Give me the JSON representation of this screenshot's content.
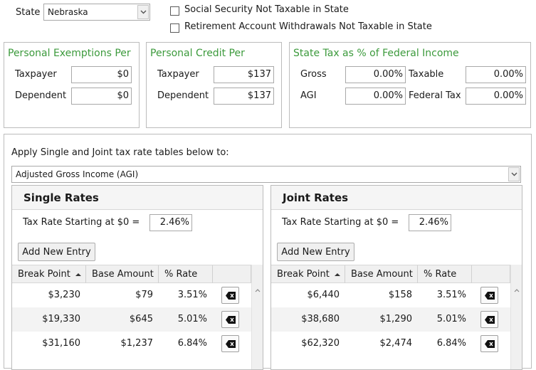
{
  "state": {
    "label": "State",
    "value": "Nebraska"
  },
  "checkboxes": [
    {
      "label": "Social Security Not Taxable in State",
      "checked": false
    },
    {
      "label": "Retirement Account Withdrawals Not Taxable in State",
      "checked": false
    }
  ],
  "exemptions": {
    "title": "Personal Exemptions Per",
    "taxpayer_label": "Taxpayer",
    "taxpayer_value": "$0",
    "dependent_label": "Dependent",
    "dependent_value": "$0"
  },
  "credit": {
    "title": "Personal Credit Per",
    "taxpayer_label": "Taxpayer",
    "taxpayer_value": "$137",
    "dependent_label": "Dependent",
    "dependent_value": "$137"
  },
  "state_tax": {
    "title": "State Tax as % of Federal Income",
    "gross_label": "Gross",
    "gross_value": "0.00%",
    "taxable_label": "Taxable",
    "taxable_value": "0.00%",
    "agi_label": "AGI",
    "agi_value": "0.00%",
    "fedtax_label": "Federal Tax",
    "fedtax_value": "0.00%"
  },
  "apply": {
    "label": "Apply Single and Joint tax rate tables below to:",
    "value": "Adjusted Gross Income (AGI)"
  },
  "single": {
    "title": "Single Rates",
    "start_label": "Tax Rate Starting at $0 =",
    "start_value": "2.46%",
    "add_label": "Add New Entry",
    "columns": [
      "Break Point",
      "Base Amount",
      "% Rate"
    ],
    "rows": [
      {
        "break": "$3,230",
        "base": "$79",
        "rate": "3.51%"
      },
      {
        "break": "$19,330",
        "base": "$645",
        "rate": "5.01%"
      },
      {
        "break": "$31,160",
        "base": "$1,237",
        "rate": "6.84%"
      }
    ]
  },
  "joint": {
    "title": "Joint Rates",
    "start_label": "Tax Rate Starting at $0 =",
    "start_value": "2.46%",
    "add_label": "Add New Entry",
    "columns": [
      "Break Point",
      "Base Amount",
      "% Rate"
    ],
    "rows": [
      {
        "break": "$6,440",
        "base": "$158",
        "rate": "3.51%"
      },
      {
        "break": "$38,680",
        "base": "$1,290",
        "rate": "5.01%"
      },
      {
        "break": "$62,320",
        "base": "$2,474",
        "rate": "6.84%"
      }
    ]
  },
  "icons": {
    "dropdown": "chevron-down-icon",
    "delete": "backspace-icon",
    "sort": "sort-up-icon",
    "scroll_up": "chevron-up-icon"
  }
}
